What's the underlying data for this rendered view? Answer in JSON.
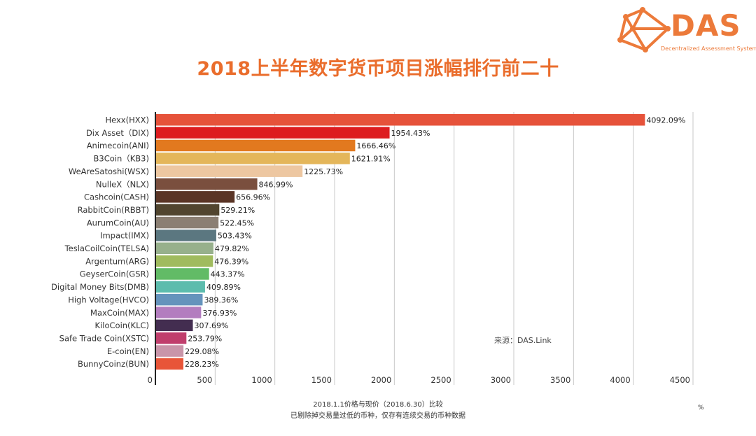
{
  "logo": {
    "name": "DAS",
    "subtitle": "Decentralized Assessment System",
    "brand_color": "#ec7a3a"
  },
  "source": {
    "label": "来源：",
    "value": "DAS.Link"
  },
  "notes": {
    "line1": "2018.1.1价格与现价（2018.6.30）比较",
    "line2": "已剔除掉交易量过低的币种，仅存有连续交易的币种数据"
  },
  "unit": "%",
  "chart_data": {
    "type": "bar",
    "orientation": "horizontal",
    "title": "2018上半年数字货币项目涨幅排行前二十",
    "xlabel": "%",
    "ylabel": "",
    "xlim": [
      0,
      4500
    ],
    "xticks": [
      0,
      500,
      1000,
      1500,
      2000,
      2500,
      3000,
      3500,
      4000,
      4500
    ],
    "grid": "vertical",
    "legend": "none",
    "value_suffix": "%",
    "categories": [
      "Hexx(HXX)",
      "Dix Asset（DIX)",
      "Animecoin(ANI)",
      "B3Coin（KB3)",
      "WeAreSatoshi(WSX)",
      "NulleX（NLX)",
      "Cashcoin(CASH)",
      "RabbitCoin(RBBT)",
      "AurumCoin(AU)",
      "Impact(IMX)",
      "TeslaCoilCoin(TELSA)",
      "Argentum(ARG)",
      "GeyserCoin(GSR)",
      "Digital Money Bits(DMB)",
      "High Voltage(HVCO)",
      "MaxCoin(MAX)",
      "KiloCoin(KLC)",
      "Safe Trade Coin(XSTC)",
      "E-coin(EN)",
      "BunnyCoinz(BUN)"
    ],
    "values": [
      4092.09,
      1954.43,
      1666.46,
      1621.91,
      1225.73,
      846.99,
      656.96,
      529.21,
      522.45,
      503.43,
      479.82,
      476.39,
      443.37,
      409.89,
      389.36,
      376.93,
      307.69,
      253.79,
      229.08,
      228.23
    ],
    "value_labels": [
      "4092.09%",
      "1954.43%",
      "1666.46%",
      "1621.91%",
      "1225.73%",
      "846.99%",
      "656.96%",
      "529.21%",
      "522.45%",
      "503.43%",
      "479.82%",
      "476.39%",
      "443.37%",
      "409.89%",
      "389.36%",
      "376.93%",
      "307.69%",
      "253.79%",
      "229.08%",
      "228.23%"
    ],
    "colors": [
      "#e6523a",
      "#dd1c1f",
      "#e2791f",
      "#e4b65a",
      "#edc7a1",
      "#7a4f3e",
      "#5a3526",
      "#51452f",
      "#8b7f73",
      "#5b7780",
      "#97b08c",
      "#a0bb5e",
      "#62bb66",
      "#5cbcad",
      "#6593bc",
      "#b37dbf",
      "#432d50",
      "#c03e6c",
      "#c995a9",
      "#e85538"
    ]
  }
}
